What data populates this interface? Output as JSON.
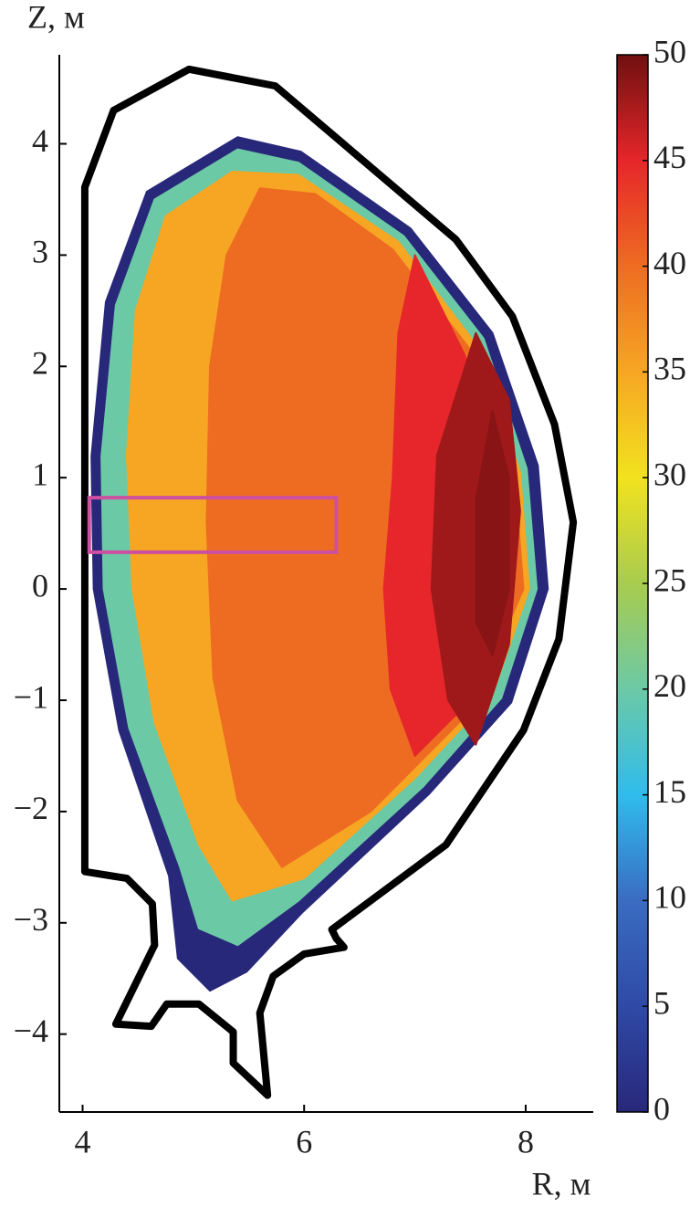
{
  "chart_data": {
    "type": "contour",
    "x_label": "R, м",
    "y_label": "Z, м",
    "xlim": [
      3.79,
      8.61
    ],
    "ylim": [
      -4.7,
      4.8
    ],
    "xticks": [
      4,
      6,
      8
    ],
    "yticks": [
      {
        "value": -4,
        "label": "−4"
      },
      {
        "value": -3,
        "label": "−3"
      },
      {
        "value": -2,
        "label": "−2"
      },
      {
        "value": -1,
        "label": "−1"
      },
      0,
      1,
      2,
      3,
      4
    ],
    "clim": [
      0,
      50
    ],
    "cticks": [
      0,
      5,
      10,
      15,
      20,
      25,
      30,
      35,
      40,
      45,
      50
    ],
    "colormap": [
      "#28287a",
      "#2f4aa6",
      "#3a6cc2",
      "#2fbcec",
      "#6cc9a6",
      "#a8cc4e",
      "#f2e21e",
      "#f6a623",
      "#ee6c22",
      "#e6262a",
      "#701010"
    ],
    "wall_color": "#000000",
    "box_color": "#cc4fa0",
    "wall": {
      "r": [
        4.02,
        4.02,
        4.28,
        4.96,
        5.74,
        7.37,
        7.88,
        8.26,
        8.43,
        8.3,
        7.98,
        7.28,
        6.25,
        6.29,
        6.36,
        6.0,
        5.72,
        5.6,
        5.67,
        5.36,
        5.36,
        5.05,
        4.76,
        4.62,
        4.3,
        4.65,
        4.63,
        4.4,
        4.02
      ],
      "z": [
        -2.54,
        3.61,
        4.3,
        4.67,
        4.52,
        3.14,
        2.45,
        1.48,
        0.6,
        -0.45,
        -1.27,
        -2.3,
        -3.06,
        -3.14,
        -3.22,
        -3.28,
        -3.48,
        -3.81,
        -4.55,
        -4.26,
        -3.98,
        -3.73,
        -3.73,
        -3.93,
        -3.91,
        -3.2,
        -2.83,
        -2.6,
        -2.54
      ]
    },
    "contours": [
      {
        "level": 0,
        "r": [
          5.4,
          4.58,
          4.21,
          4.08,
          4.1,
          4.33,
          4.78,
          4.86,
          5.15,
          5.48,
          5.98,
          7.13,
          7.87,
          8.2,
          8.11,
          7.7,
          6.96,
          5.97
        ],
        "z": [
          4.06,
          3.57,
          2.58,
          1.19,
          0,
          -1.27,
          -2.58,
          -3.32,
          -3.61,
          -3.44,
          -2.91,
          -1.84,
          -1.02,
          0,
          1.11,
          2.3,
          3.24,
          3.93
        ]
      },
      {
        "level": 20,
        "r": [
          5.4,
          4.65,
          4.3,
          4.17,
          4.19,
          4.42,
          4.88,
          5.05,
          5.4,
          5.95,
          7.07,
          7.78,
          8.1,
          8.01,
          7.62,
          6.9,
          5.95
        ],
        "z": [
          3.95,
          3.5,
          2.55,
          1.19,
          0,
          -1.25,
          -2.5,
          -3.05,
          -3.2,
          -2.8,
          -1.78,
          -0.98,
          0,
          1.08,
          2.25,
          3.17,
          3.83
        ]
      },
      {
        "level": 35,
        "r": [
          5.35,
          4.75,
          4.48,
          4.4,
          4.45,
          4.65,
          5.05,
          5.35,
          6.0,
          7.0,
          7.7,
          8.03,
          7.95,
          7.55,
          6.85,
          5.95
        ],
        "z": [
          3.75,
          3.35,
          2.5,
          1.2,
          0,
          -1.2,
          -2.3,
          -2.8,
          -2.6,
          -1.7,
          -0.95,
          0,
          1.05,
          2.2,
          3.12,
          3.72
        ]
      },
      {
        "level": 40,
        "r": [
          5.6,
          5.3,
          5.15,
          5.12,
          5.18,
          5.4,
          5.8,
          6.6,
          7.5,
          7.98,
          7.9,
          7.5,
          6.8,
          6.1
        ],
        "z": [
          3.6,
          3.0,
          2.0,
          0.6,
          -0.8,
          -1.9,
          -2.5,
          -2.0,
          -1.1,
          0,
          1.0,
          2.15,
          3.05,
          3.55
        ]
      },
      {
        "level": 45,
        "r": [
          7.0,
          6.85,
          6.8,
          6.72,
          6.78,
          7.0,
          7.5,
          7.85,
          7.8,
          7.45
        ],
        "z": [
          3.0,
          2.3,
          1.0,
          0,
          -0.9,
          -1.5,
          -1.0,
          0,
          1.0,
          2.1
        ]
      },
      {
        "level": 48,
        "r": [
          7.55,
          7.2,
          7.15,
          7.3,
          7.55,
          7.85,
          7.95,
          7.85
        ],
        "z": [
          2.3,
          1.2,
          0,
          -1.0,
          -1.4,
          -0.5,
          0.7,
          1.7
        ]
      },
      {
        "level": 49,
        "r": [
          7.7,
          7.55,
          7.55,
          7.7,
          7.85,
          7.85
        ],
        "z": [
          1.6,
          0.8,
          -0.3,
          -0.6,
          0,
          1.0
        ]
      }
    ],
    "box": {
      "r": [
        4.06,
        6.29
      ],
      "z": [
        0.33,
        0.82
      ]
    }
  }
}
